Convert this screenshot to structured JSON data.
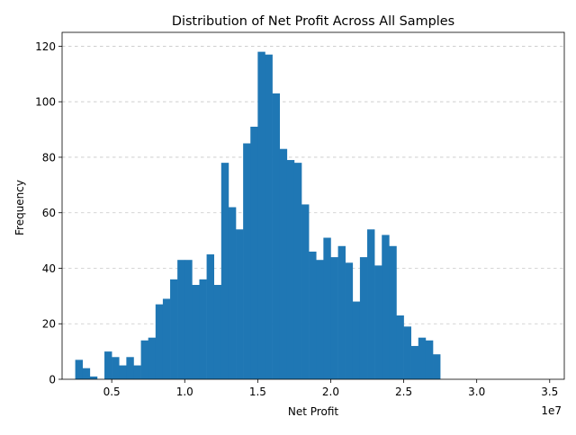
{
  "chart_data": {
    "type": "bar",
    "title": "Distribution of Net Profit Across All Samples",
    "xlabel": "Net Profit",
    "ylabel": "Frequency",
    "x_offset_label": "1e7",
    "bin_start": 0.25,
    "bin_width": 0.05,
    "values": [
      7,
      4,
      1,
      0,
      10,
      8,
      5,
      8,
      5,
      14,
      15,
      27,
      29,
      36,
      43,
      43,
      34,
      36,
      45,
      34,
      78,
      62,
      54,
      85,
      91,
      118,
      117,
      103,
      83,
      79,
      78,
      63,
      46,
      43,
      51,
      44,
      48,
      42,
      28,
      44,
      54,
      41,
      52,
      48,
      23,
      19,
      12,
      15,
      14,
      9
    ],
    "xlim": [
      0.16,
      3.6
    ],
    "ylim": [
      0,
      125
    ],
    "xticks": [
      0.5,
      1.0,
      1.5,
      2.0,
      2.5,
      3.0,
      3.5
    ],
    "xtick_labels": [
      "0.5",
      "1.0",
      "1.5",
      "2.0",
      "2.5",
      "3.0",
      "3.5"
    ],
    "yticks": [
      0,
      20,
      40,
      60,
      80,
      100,
      120
    ],
    "ytick_labels": [
      "0",
      "20",
      "40",
      "60",
      "80",
      "100",
      "120"
    ],
    "grid": "y-dashed",
    "bar_color": "#1f77b4"
  }
}
